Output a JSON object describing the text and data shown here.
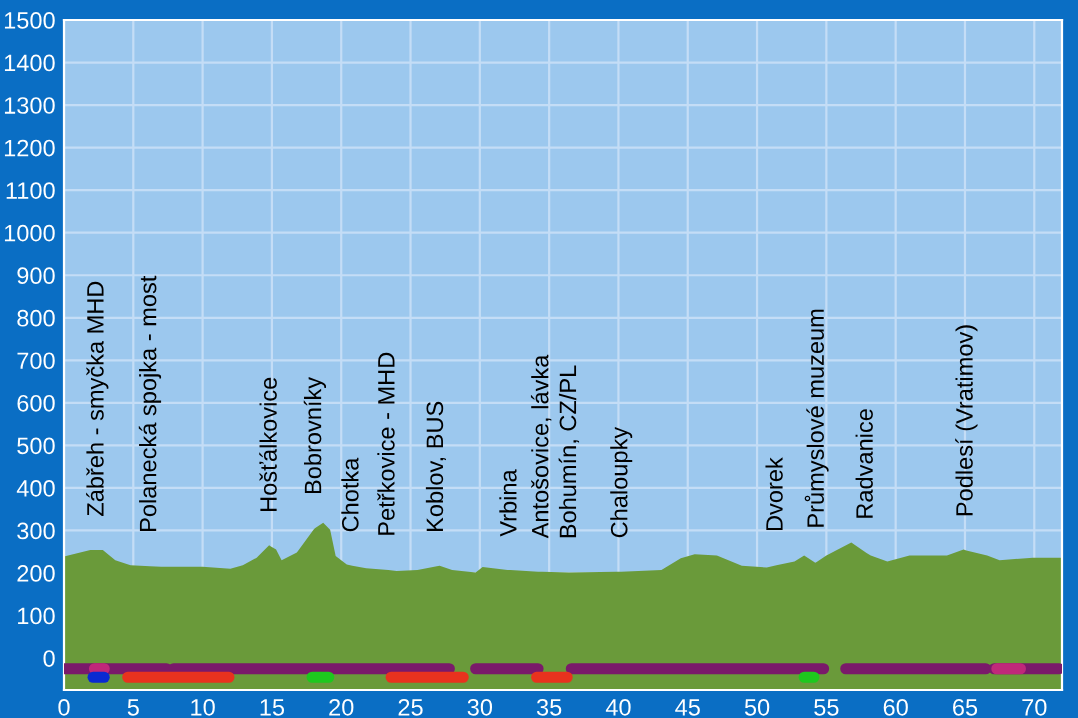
{
  "chart_data": {
    "type": "area",
    "xlim": [
      0,
      72
    ],
    "ylim": [
      -75,
      1500
    ],
    "xticks": [
      0,
      5,
      10,
      15,
      20,
      25,
      30,
      35,
      40,
      45,
      50,
      55,
      60,
      65,
      70
    ],
    "yticks": [
      0,
      100,
      200,
      300,
      400,
      500,
      600,
      700,
      800,
      900,
      1000,
      1100,
      1200,
      1300,
      1400,
      1500
    ],
    "grid": true,
    "bands": [
      {
        "axis": "y",
        "from": -75,
        "to": 0,
        "color": "#6a9a3a"
      }
    ],
    "series": [
      {
        "color": "#6a9a3a",
        "x": [
          0,
          1.9,
          2.4,
          2.8,
          3.7,
          4.8,
          6.2,
          7,
          10,
          12,
          12.9,
          13.9,
          14.8,
          14.9,
          15.3,
          15.7,
          16.8,
          18.0,
          18.1,
          18.7,
          19.2,
          19.6,
          20.4,
          20.8,
          21.8,
          23.4,
          24.0,
          25.5,
          26.9,
          27.1,
          28,
          29.7,
          30.2,
          32,
          32.2,
          34.2,
          34.5,
          36.4,
          36.5,
          39.8,
          40.2,
          43.1,
          44.5,
          45.5,
          47.1,
          48.9,
          50.7,
          51.4,
          52.7,
          53.4,
          54.2,
          54.3,
          55.0,
          56.8,
          57.9,
          58.2,
          59.4,
          61,
          63.7,
          64.9,
          65.1,
          66.6,
          67.5,
          69.9,
          72
        ],
        "values": [
          239,
          254,
          254,
          254,
          230,
          218,
          216,
          215,
          215,
          210,
          218,
          236,
          265,
          263,
          255,
          230,
          248,
          302,
          305,
          318,
          302,
          240,
          220,
          217,
          211,
          207,
          205,
          207,
          216,
          217,
          207,
          201,
          214,
          207,
          207,
          203,
          203,
          201,
          201,
          203,
          203,
          207,
          235,
          244,
          241,
          217,
          213,
          218,
          227,
          241,
          224,
          226,
          241,
          272,
          247,
          241,
          227,
          241,
          241,
          255,
          253,
          241,
          230,
          236,
          236
        ]
      },
      {
        "type": "line",
        "color": "#7a1a6a",
        "x": [
          0,
          7.4,
          7.5,
          7.9,
          27.8,
          28,
          29.7,
          34.2,
          34.5,
          36.6,
          54.8,
          55,
          56.4,
          66.5,
          66.8,
          67.1,
          71.8
        ],
        "values": [
          -25,
          -25,
          null,
          -25,
          -25,
          null,
          -25,
          -25,
          null,
          -25,
          -25,
          null,
          -25,
          -25,
          null,
          -25,
          -25
        ]
      },
      {
        "type": "line",
        "color": "#c0287a",
        "x": [
          2.2,
          2.9,
          3,
          67.3,
          69
        ],
        "values": [
          -25,
          -25,
          null,
          -25,
          -25
        ]
      },
      {
        "type": "line",
        "color": "#e8321e",
        "x": [
          4.6,
          11.9,
          12,
          23.6,
          28.8,
          29,
          34.1,
          36.3
        ],
        "values": [
          -45,
          -45,
          null,
          -45,
          -45,
          null,
          -45,
          -45
        ]
      },
      {
        "type": "line",
        "color": "#1ec81e",
        "x": [
          17.9,
          19.1,
          19.3,
          53.4,
          54.1
        ],
        "values": [
          -45,
          -45,
          null,
          -45,
          -45
        ]
      },
      {
        "type": "line",
        "color": "#0a2ad2",
        "x": [
          2.1,
          2.9
        ],
        "values": [
          -45,
          -45
        ]
      }
    ],
    "annotations": [
      {
        "text": "Zábřeh - smyčka MHD",
        "x": 2.4,
        "y": 254
      },
      {
        "text": "Polanecká spojka - most",
        "x": 6.2,
        "y": 216
      },
      {
        "text": "Hošťálkovice",
        "x": 14.9,
        "y": 263
      },
      {
        "text": "Bobrovníky",
        "x": 18.1,
        "y": 305
      },
      {
        "text": "Chotka",
        "x": 20.8,
        "y": 217
      },
      {
        "text": "Petřkovice - MHD",
        "x": 23.4,
        "y": 207
      },
      {
        "text": "Koblov, BUS",
        "x": 26.9,
        "y": 216
      },
      {
        "text": "Vrbina",
        "x": 32.2,
        "y": 207
      },
      {
        "text": "Antošovice, lávka",
        "x": 34.5,
        "y": 203
      },
      {
        "text": "Bohumín, CZ/PL",
        "x": 36.5,
        "y": 201
      },
      {
        "text": "Chaloupky",
        "x": 40.2,
        "y": 203
      },
      {
        "text": "Dvorek",
        "x": 51.4,
        "y": 218
      },
      {
        "text": "Průmyslové muzeum",
        "x": 54.3,
        "y": 226
      },
      {
        "text": "Radvanice",
        "x": 57.9,
        "y": 247
      },
      {
        "text": "Podlesí (Vratimov)",
        "x": 65.1,
        "y": 253
      }
    ]
  }
}
